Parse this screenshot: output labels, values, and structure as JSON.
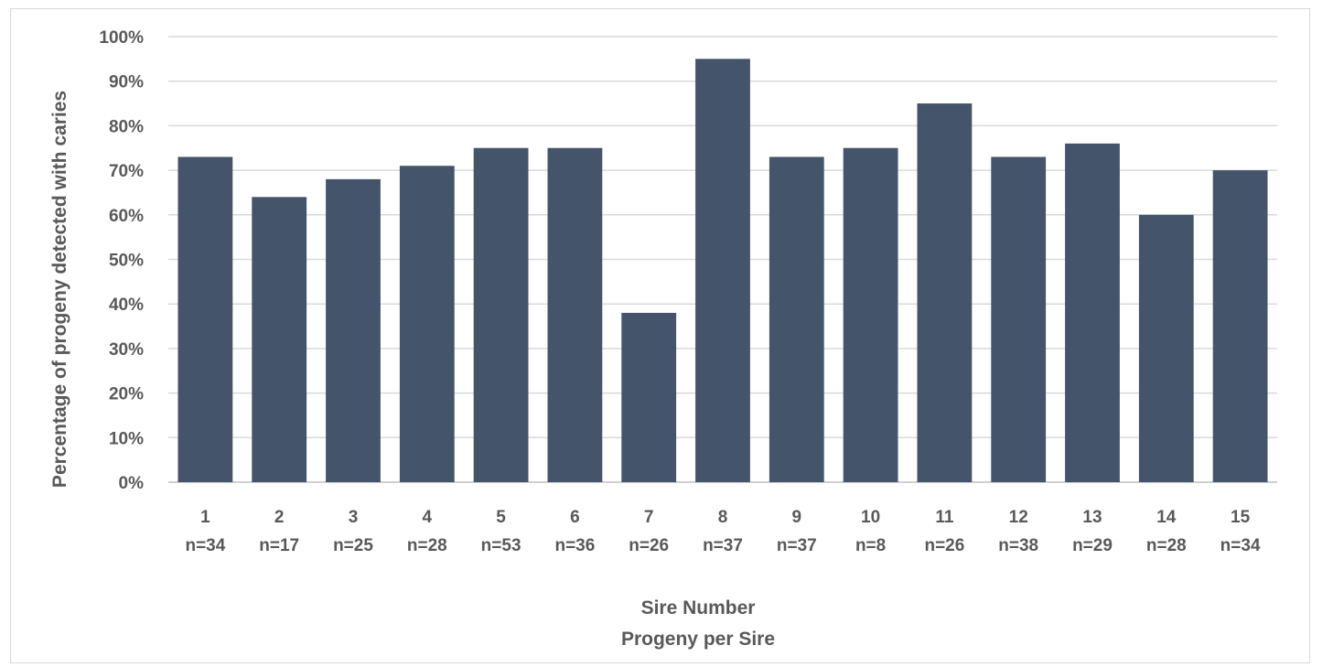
{
  "chart_data": {
    "type": "bar",
    "title": "",
    "xlabel": "Sire Number",
    "xlabel_line2": "Progeny per Sire",
    "ylabel": "Percentage  of progeny detected with caries",
    "ylim": [
      0,
      100
    ],
    "y_ticks": [
      "0%",
      "10%",
      "20%",
      "30%",
      "40%",
      "50%",
      "60%",
      "70%",
      "80%",
      "90%",
      "100%"
    ],
    "grid": true,
    "bar_color": "#44546a",
    "categories": [
      "1",
      "2",
      "3",
      "4",
      "5",
      "6",
      "7",
      "8",
      "9",
      "10",
      "11",
      "12",
      "13",
      "14",
      "15"
    ],
    "category_sublabels": [
      "n=34",
      "n=17",
      "n=25",
      "n=28",
      "n=53",
      "n=36",
      "n=26",
      "n=37",
      "n=37",
      "n=8",
      "n=26",
      "n=38",
      "n=29",
      "n=28",
      "n=34"
    ],
    "values": [
      73,
      64,
      68,
      71,
      75,
      75,
      38,
      95,
      73,
      75,
      85,
      73,
      76,
      60,
      70
    ]
  }
}
